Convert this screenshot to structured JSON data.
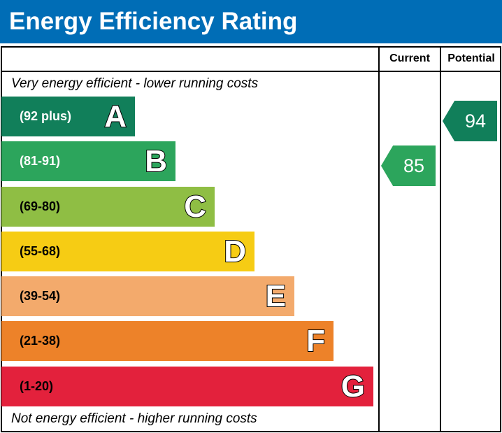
{
  "title": "Energy Efficiency Rating",
  "chart_data": {
    "type": "bar",
    "title": "Energy Efficiency Rating",
    "columns": [
      "Current",
      "Potential"
    ],
    "top_note": "Very energy efficient - lower running costs",
    "bottom_note": "Not energy efficient - higher running costs",
    "bands": [
      {
        "letter": "A",
        "range": "(92 plus)",
        "color": "#117f5a",
        "text_color": "#ffffff"
      },
      {
        "letter": "B",
        "range": "(81-91)",
        "color": "#2ca55c",
        "text_color": "#ffffff"
      },
      {
        "letter": "C",
        "range": "(69-80)",
        "color": "#8fbe44",
        "text_color": "#000000"
      },
      {
        "letter": "D",
        "range": "(55-68)",
        "color": "#f6cc14",
        "text_color": "#000000"
      },
      {
        "letter": "E",
        "range": "(39-54)",
        "color": "#f3aa6c",
        "text_color": "#000000"
      },
      {
        "letter": "F",
        "range": "(21-38)",
        "color": "#ed8229",
        "text_color": "#000000"
      },
      {
        "letter": "G",
        "range": "(1-20)",
        "color": "#e3213c",
        "text_color": "#000000"
      }
    ],
    "current": {
      "value": "85",
      "band": "B",
      "color": "#2ca55c"
    },
    "potential": {
      "value": "94",
      "band": "A",
      "color": "#117f5a"
    }
  }
}
